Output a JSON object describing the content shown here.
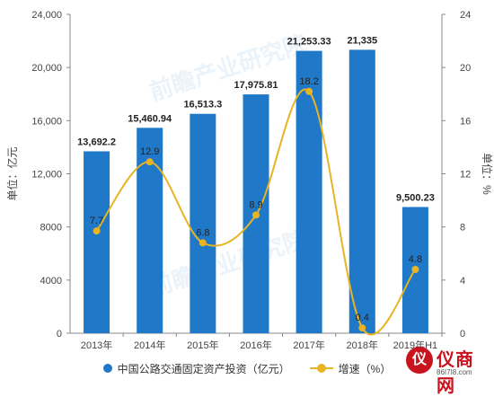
{
  "chart_data": {
    "type": "bar",
    "categories": [
      "2013年",
      "2014年",
      "2015年",
      "2016年",
      "2017年",
      "2018年",
      "2019年H1"
    ],
    "series": [
      {
        "name": "中国公路交通固定资产投资（亿元）",
        "type": "bar",
        "axis": "left",
        "values": [
          13692.2,
          15460.94,
          16513.3,
          17975.81,
          21253.33,
          21335,
          9500.23
        ],
        "labels": [
          "13,692.2",
          "15,460.94",
          "16,513.3",
          "17,975.81",
          "21,253.33",
          "21,335",
          "9,500.23"
        ]
      },
      {
        "name": "增速（%）",
        "type": "line",
        "axis": "right",
        "values": [
          7.7,
          12.9,
          6.8,
          8.9,
          18.2,
          0.4,
          4.8
        ],
        "labels": [
          "7.7",
          "12.9",
          "6.8",
          "8.9",
          "18.2",
          "0.4",
          "4.8"
        ]
      }
    ],
    "y_left": {
      "label": "单位：亿元",
      "range": [
        0,
        24000
      ],
      "ticks": [
        "0",
        "4000",
        "8000",
        "12,000",
        "16,000",
        "20,000",
        "24,000"
      ]
    },
    "y_right": {
      "label": "单位：%",
      "range": [
        0,
        24
      ],
      "ticks": [
        "0",
        "4",
        "8",
        "12",
        "16",
        "20",
        "24"
      ]
    },
    "legend_position": "bottom",
    "grid": false
  },
  "colors": {
    "bar": "#1f78c8",
    "line": "#e8b423",
    "axis": "#888888",
    "text": "#333333"
  },
  "watermark": {
    "text": "前瞻产业研究院",
    "logo_char": "仪",
    "logo_name": "仪商网",
    "logo_url": "86I7I8.com"
  }
}
